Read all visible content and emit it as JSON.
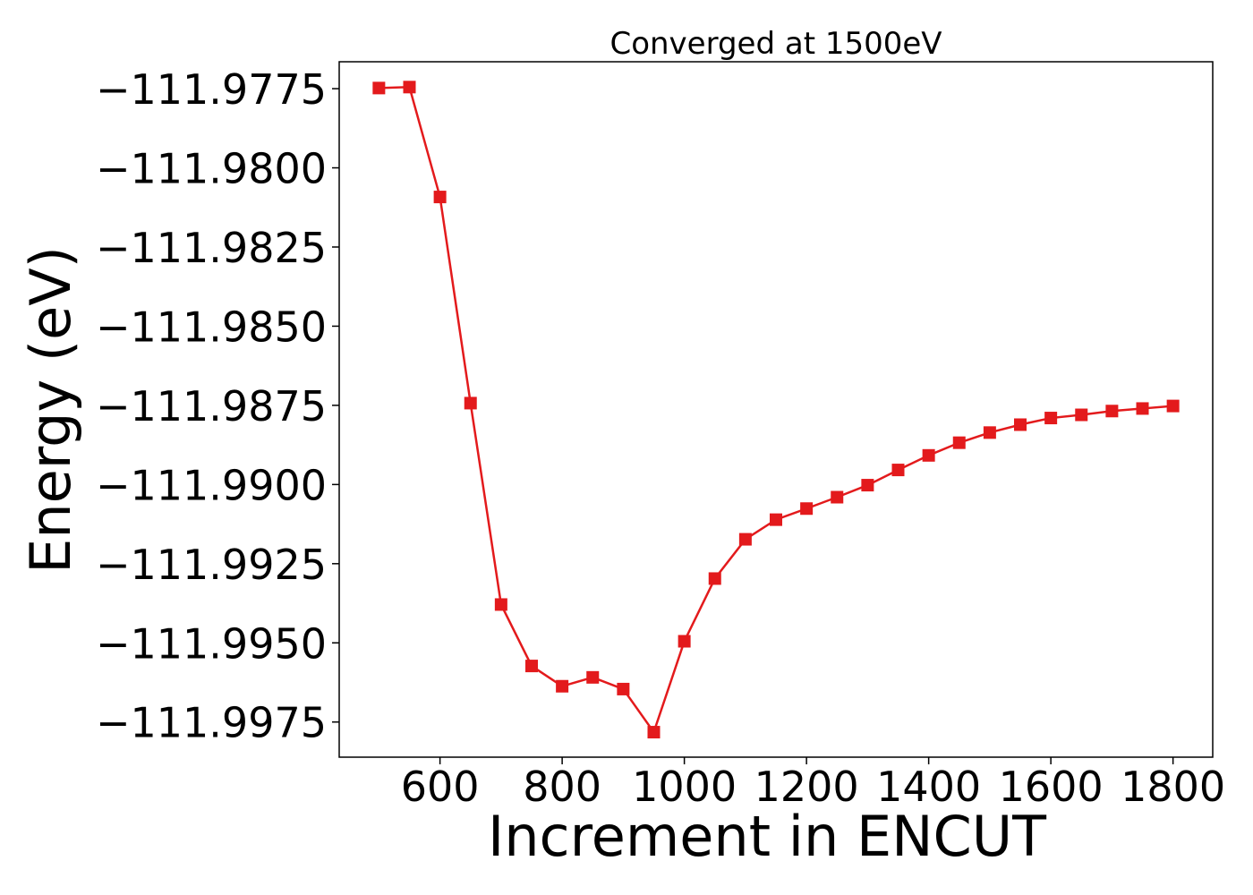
{
  "chart_data": {
    "type": "line",
    "title": "Converged at 1500eV",
    "xlabel": "Increment in ENCUT",
    "ylabel": "Energy (eV)",
    "xlim": [
      435,
      1865
    ],
    "ylim": [
      -111.99861,
      -111.97665
    ],
    "x_ticks": [
      600,
      800,
      1000,
      1200,
      1400,
      1600,
      1800
    ],
    "y_ticks": [
      -111.9775,
      -111.98,
      -111.9825,
      -111.985,
      -111.9875,
      -111.99,
      -111.9925,
      -111.995,
      -111.9975
    ],
    "y_tick_labels": [
      "−111.9775",
      "−111.9800",
      "−111.9825",
      "−111.9850",
      "−111.9875",
      "−111.9900",
      "−111.9925",
      "−111.9950",
      "−111.9975"
    ],
    "grid": false,
    "series": [
      {
        "color": "#e31a1c",
        "marker": "square",
        "x": [
          500,
          550,
          600,
          650,
          700,
          750,
          800,
          850,
          900,
          950,
          1000,
          1050,
          1100,
          1150,
          1200,
          1250,
          1300,
          1350,
          1400,
          1450,
          1500,
          1550,
          1600,
          1650,
          1700,
          1750,
          1800
        ],
        "y": [
          -111.97748,
          -111.97745,
          -111.98092,
          -111.98743,
          -111.99379,
          -111.99573,
          -111.99637,
          -111.99609,
          -111.99646,
          -111.99782,
          -111.99495,
          -111.99297,
          -111.99173,
          -111.99111,
          -111.99076,
          -111.9904,
          -111.99002,
          -111.98954,
          -111.98908,
          -111.98868,
          -111.98836,
          -111.98811,
          -111.9879,
          -111.9878,
          -111.98768,
          -111.9876,
          -111.98752
        ]
      }
    ]
  }
}
